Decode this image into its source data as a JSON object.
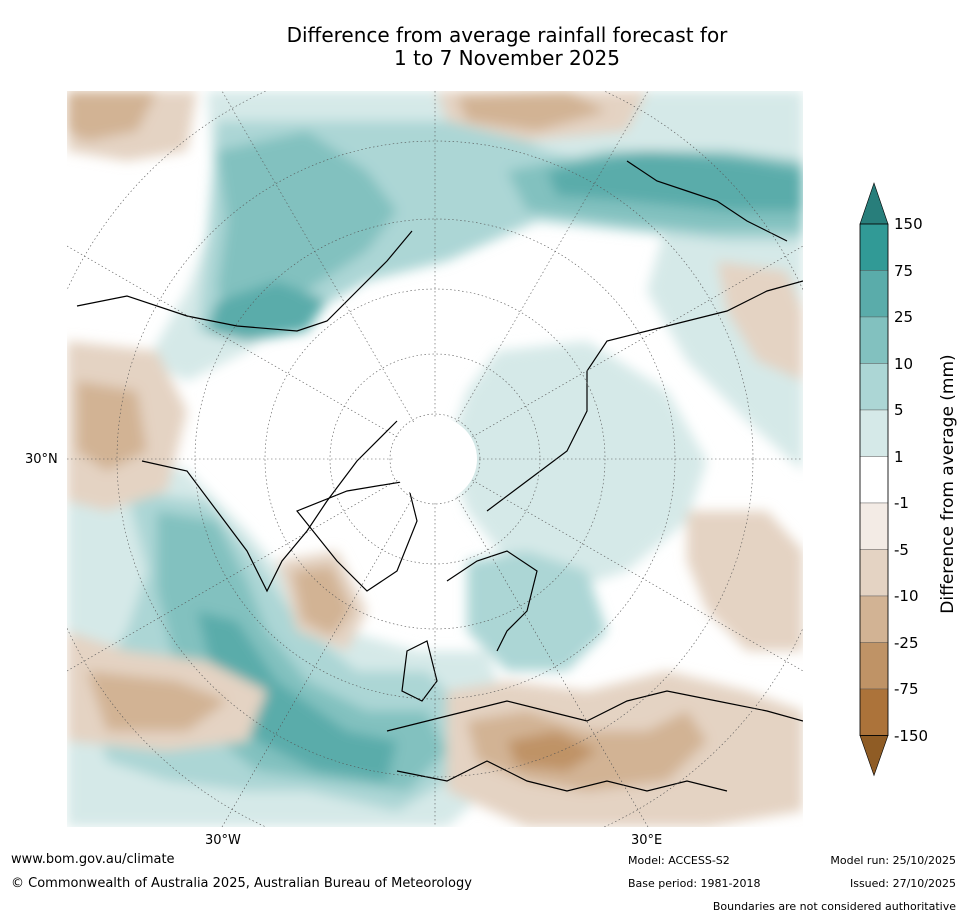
{
  "title": {
    "line1": "Difference from average rainfall forecast for",
    "line2": "1 to 7 November 2025"
  },
  "map": {
    "projection": "polar stereographic, Northern Hemisphere",
    "lat_label": "30°N",
    "lon_labels": {
      "west": "30°W",
      "east": "30°E"
    }
  },
  "colorbar": {
    "title": "Difference from average (mm)",
    "labels": [
      "150",
      "75",
      "25",
      "10",
      "5",
      "1",
      "-1",
      "-5",
      "-10",
      "-25",
      "-75",
      "-150"
    ],
    "bins": [
      {
        "range": ">150",
        "color": "#287e7b"
      },
      {
        "range": "75 to 150",
        "color": "#319a96"
      },
      {
        "range": "25 to 75",
        "color": "#5aacaa"
      },
      {
        "range": "10 to 25",
        "color": "#82c1bf"
      },
      {
        "range": "5 to 10",
        "color": "#acd6d5"
      },
      {
        "range": "1 to 5",
        "color": "#d5e9e8"
      },
      {
        "range": "-1 to 1",
        "color": "#ffffff"
      },
      {
        "range": "-5 to -1",
        "color": "#f3ebe5"
      },
      {
        "range": "-10 to -5",
        "color": "#e4d3c3"
      },
      {
        "range": "-25 to -10",
        "color": "#d2b394"
      },
      {
        "range": "-75 to -25",
        "color": "#bf9366"
      },
      {
        "range": "-150 to -75",
        "color": "#ac733a"
      },
      {
        "range": "<-150",
        "color": "#8f5c25"
      }
    ]
  },
  "footer": {
    "website": "www.bom.gov.au/climate",
    "copyright": "© Commonwealth of Australia 2025, Australian Bureau of Meteorology",
    "model": "Model: ACCESS-S2",
    "base_period": "Base period: 1981-2018",
    "model_run": "Model run: 25/10/2025",
    "issued": "Issued: 27/10/2025",
    "disclaimer": "Boundaries are not considered authoritative"
  }
}
